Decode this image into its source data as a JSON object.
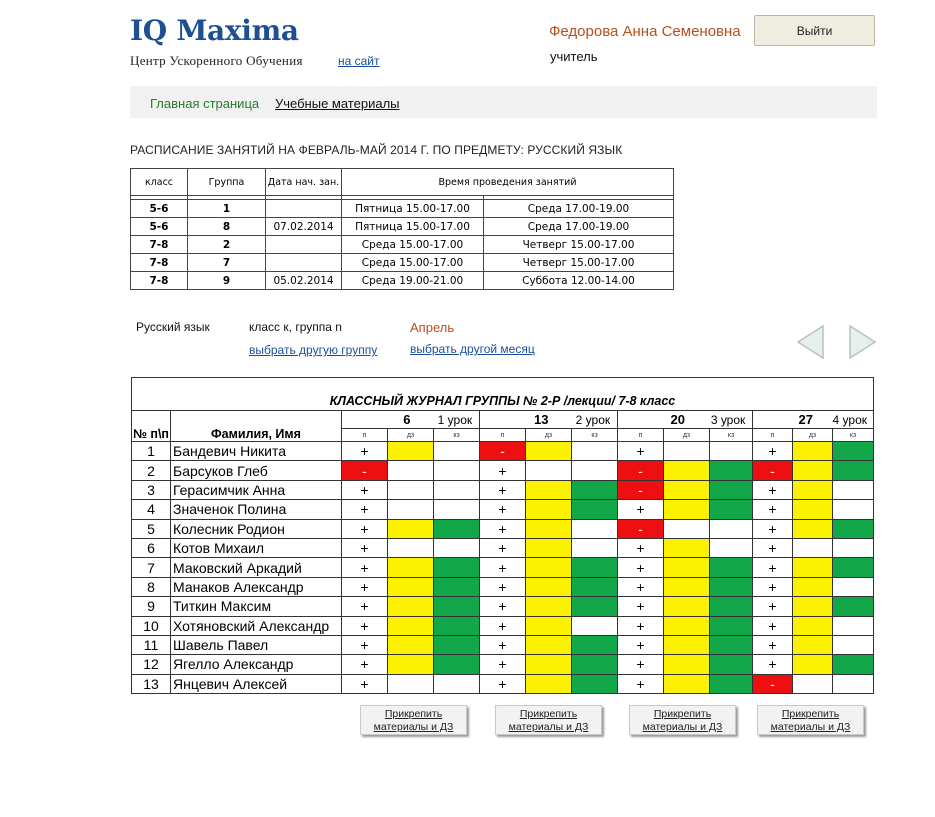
{
  "header": {
    "logo": "IQ Maxima",
    "subtitle": "Центр Ускоренного Обучения",
    "site_link": "на сайт",
    "user_name": "Федорова Анна Семеновна",
    "user_role": "учитель",
    "logout": "Выйти"
  },
  "nav": {
    "home": "Главная страница",
    "materials": "Учебные материалы"
  },
  "schedule": {
    "title": "РАСПИСАНИЕ ЗАНЯТИЙ НА ФЕВРАЛЬ-МАЙ 2014 Г. ПО ПРЕДМЕТУ: РУССКИЙ ЯЗЫК",
    "headers": [
      "класс",
      "Группа",
      "Дата нач. зан.",
      "Время проведения занятий"
    ],
    "rows": [
      [
        "5-6",
        "1",
        "",
        "Пятница 15.00-17.00",
        "Среда 17.00-19.00"
      ],
      [
        "5-6",
        "8",
        "07.02.2014",
        "Пятница 15.00-17.00",
        "Среда 17.00-19.00"
      ],
      [
        "7-8",
        "2",
        "",
        "Среда 15.00-17.00",
        "Четверг 15.00-17.00"
      ],
      [
        "7-8",
        "7",
        "",
        "Среда 15.00-17.00",
        "Четверг 15.00-17.00"
      ],
      [
        "7-8",
        "9",
        "05.02.2014",
        "Среда 19.00-21.00",
        "Суббота 12.00-14.00"
      ]
    ]
  },
  "selector": {
    "subject": "Русский язык",
    "group_label": "класс к, группа n",
    "month": "Апрель",
    "choose_group": "выбрать другую группу",
    "choose_month": "выбрать другой месяц"
  },
  "journal": {
    "title": "КЛАССНЫЙ ЖУРНАЛ ГРУППЫ № 2-Р /лекции/ 7-8 класс",
    "col_num": "№ п\\п",
    "col_name": "Фамилия, Имя",
    "lessons": [
      {
        "date": "6",
        "label": "1 урок"
      },
      {
        "date": "13",
        "label": "2 урок"
      },
      {
        "date": "20",
        "label": "3 урок"
      },
      {
        "date": "27",
        "label": "4 урок"
      }
    ],
    "subcols": [
      "п",
      "дз",
      "кз"
    ],
    "colors": {
      "yellow": "#fbf100",
      "green": "#12a84a",
      "red": "#ee1010"
    },
    "students": [
      {
        "n": "1",
        "name": "Бандевич Никита",
        "cells": [
          [
            "+",
            "y",
            ""
          ],
          [
            "-",
            "y",
            ""
          ],
          [
            "+",
            "",
            ""
          ],
          [
            "+",
            "y",
            "g"
          ]
        ]
      },
      {
        "n": "2",
        "name": "Барсуков Глеб",
        "cells": [
          [
            "-",
            "",
            ""
          ],
          [
            "+",
            "",
            ""
          ],
          [
            "-",
            "y",
            "g"
          ],
          [
            "-",
            "y",
            "g"
          ]
        ]
      },
      {
        "n": "3",
        "name": "Герасимчик Анна",
        "cells": [
          [
            "+",
            "",
            ""
          ],
          [
            "+",
            "y",
            "g"
          ],
          [
            "-",
            "y",
            "g"
          ],
          [
            "+",
            "y",
            ""
          ]
        ]
      },
      {
        "n": "4",
        "name": "Значенок Полина",
        "cells": [
          [
            "+",
            "",
            ""
          ],
          [
            "+",
            "y",
            "g"
          ],
          [
            "+",
            "y",
            "g"
          ],
          [
            "+",
            "y",
            ""
          ]
        ]
      },
      {
        "n": "5",
        "name": "Колесник Родион",
        "cells": [
          [
            "+",
            "y",
            "g"
          ],
          [
            "+",
            "y",
            ""
          ],
          [
            "-",
            "",
            ""
          ],
          [
            "+",
            "y",
            "g"
          ]
        ]
      },
      {
        "n": "6",
        "name": "Котов Михаил",
        "cells": [
          [
            "+",
            "",
            ""
          ],
          [
            "+",
            "y",
            ""
          ],
          [
            "+",
            "y",
            ""
          ],
          [
            "+",
            "",
            ""
          ]
        ]
      },
      {
        "n": "7",
        "name": "Маковский Аркадий",
        "cells": [
          [
            "+",
            "y",
            "g"
          ],
          [
            "+",
            "y",
            "g"
          ],
          [
            "+",
            "y",
            "g"
          ],
          [
            "+",
            "y",
            "g"
          ]
        ]
      },
      {
        "n": "8",
        "name": "Манаков Александр",
        "cells": [
          [
            "+",
            "y",
            "g"
          ],
          [
            "+",
            "y",
            "g"
          ],
          [
            "+",
            "y",
            "g"
          ],
          [
            "+",
            "y",
            ""
          ]
        ]
      },
      {
        "n": "9",
        "name": "Титкин Максим",
        "cells": [
          [
            "+",
            "y",
            "g"
          ],
          [
            "+",
            "y",
            "g"
          ],
          [
            "+",
            "y",
            "g"
          ],
          [
            "+",
            "y",
            "g"
          ]
        ]
      },
      {
        "n": "10",
        "name": "Хотяновский Александр",
        "cells": [
          [
            "+",
            "y",
            "g"
          ],
          [
            "+",
            "y",
            ""
          ],
          [
            "+",
            "y",
            "g"
          ],
          [
            "+",
            "y",
            ""
          ]
        ]
      },
      {
        "n": "11",
        "name": "Шавель Павел",
        "cells": [
          [
            "+",
            "y",
            "g"
          ],
          [
            "+",
            "y",
            "g"
          ],
          [
            "+",
            "y",
            "g"
          ],
          [
            "+",
            "y",
            ""
          ]
        ]
      },
      {
        "n": "12",
        "name": "Ягелло Александр",
        "cells": [
          [
            "+",
            "y",
            "g"
          ],
          [
            "+",
            "y",
            "g"
          ],
          [
            "+",
            "y",
            "g"
          ],
          [
            "+",
            "y",
            "g"
          ]
        ]
      },
      {
        "n": "13",
        "name": "Янцевич Алексей",
        "cells": [
          [
            "+",
            "",
            ""
          ],
          [
            "+",
            "y",
            "g"
          ],
          [
            "+",
            "y",
            "g"
          ],
          [
            "-",
            "",
            ""
          ]
        ]
      }
    ]
  },
  "attach_button": {
    "line1": "Прикрепить",
    "line2": "материалы и ДЗ"
  }
}
